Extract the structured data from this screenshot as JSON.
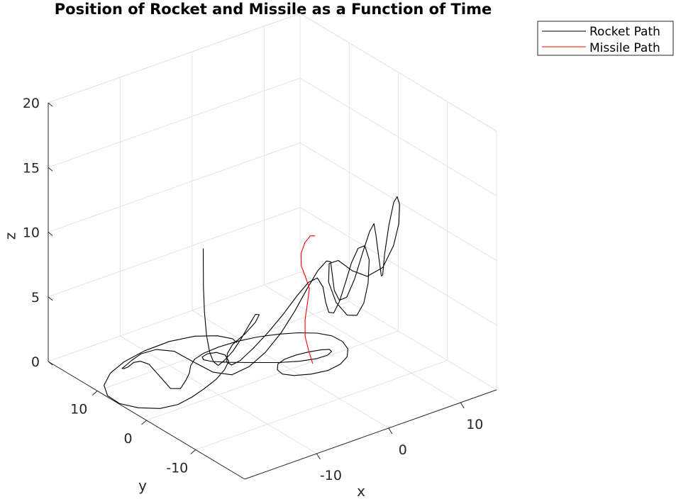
{
  "chart_data": {
    "type": "line3d",
    "title": "Position of Rocket and Missile as a Function of Time",
    "xlabel": "x",
    "ylabel": "y",
    "zlabel": "z",
    "xlim": [
      -20,
      15
    ],
    "ylim": [
      -20,
      20
    ],
    "zlim": [
      0,
      20
    ],
    "xticks": [
      -10,
      0,
      10
    ],
    "yticks": [
      -10,
      0,
      10
    ],
    "zticks": [
      0,
      5,
      10,
      15,
      20
    ],
    "grid": true,
    "legend_position": "top-right",
    "series": [
      {
        "name": "Rocket Path",
        "color": "#000000",
        "points": [
          [
            -14.5,
            -3.5,
            13.0
          ],
          [
            -14.4,
            -3.4,
            10.0
          ],
          [
            -14.2,
            -3.3,
            8.0
          ],
          [
            -13.7,
            -3.0,
            6.0
          ],
          [
            -13.0,
            -2.6,
            4.5
          ],
          [
            -12.2,
            -2.2,
            3.5
          ],
          [
            -11.4,
            -2.0,
            3.0
          ],
          [
            -10.6,
            -2.0,
            3.2
          ],
          [
            -9.8,
            -2.6,
            3.9
          ],
          [
            -9.2,
            -3.5,
            5.0
          ],
          [
            -8.8,
            -4.5,
            6.2
          ],
          [
            -8.6,
            -5.5,
            7.2
          ],
          [
            -8.9,
            -6.7,
            7.5
          ],
          [
            -10.0,
            -7.5,
            7.3
          ],
          [
            -11.2,
            -7.2,
            6.6
          ],
          [
            -12.0,
            -5.8,
            5.6
          ],
          [
            -11.7,
            -4.3,
            4.5
          ],
          [
            -10.9,
            -3.0,
            3.4
          ],
          [
            -9.6,
            -2.1,
            2.7
          ],
          [
            -8.0,
            -1.5,
            2.6
          ],
          [
            -6.3,
            -1.6,
            3.2
          ],
          [
            -4.8,
            -2.4,
            4.3
          ],
          [
            -3.5,
            -3.7,
            5.8
          ],
          [
            -2.5,
            -5.0,
            7.3
          ],
          [
            -1.8,
            -6.3,
            8.5
          ],
          [
            -1.3,
            -7.4,
            9.0
          ],
          [
            -1.2,
            -8.4,
            8.5
          ],
          [
            -1.1,
            -8.8,
            7.4
          ],
          [
            -0.6,
            -8.7,
            6.5
          ],
          [
            0.5,
            -8.1,
            6.1
          ],
          [
            1.9,
            -7.2,
            6.5
          ],
          [
            3.4,
            -6.2,
            7.4
          ],
          [
            4.8,
            -5.4,
            8.5
          ],
          [
            6.0,
            -5.0,
            9.3
          ],
          [
            6.8,
            -5.2,
            9.4
          ],
          [
            7.0,
            -5.8,
            8.4
          ],
          [
            6.5,
            -6.3,
            6.8
          ],
          [
            5.7,
            -6.6,
            5.5
          ],
          [
            4.8,
            -6.5,
            4.7
          ],
          [
            3.8,
            -6.0,
            4.8
          ],
          [
            2.8,
            -5.2,
            5.8
          ],
          [
            2.3,
            -4.4,
            7.3
          ],
          [
            2.8,
            -3.8,
            8.5
          ],
          [
            4.2,
            -3.6,
            8.4
          ],
          [
            6.0,
            -3.8,
            7.3
          ],
          [
            7.8,
            -4.2,
            6.6
          ],
          [
            9.7,
            -4.6,
            7.0
          ],
          [
            11.2,
            -4.6,
            8.4
          ],
          [
            12.2,
            -4.2,
            9.8
          ],
          [
            12.8,
            -3.5,
            11.0
          ],
          [
            13.0,
            -2.7,
            11.4
          ],
          [
            13.0,
            -2.0,
            10.8
          ],
          [
            12.6,
            -1.6,
            9.0
          ],
          [
            12.0,
            -1.6,
            6.9
          ],
          [
            11.4,
            -2.1,
            5.5
          ],
          [
            10.6,
            -3.0,
            5.8
          ],
          [
            9.9,
            -3.5,
            7.5
          ],
          [
            9.5,
            -3.5,
            9.3
          ],
          [
            9.3,
            -3.4,
            10.2
          ],
          [
            8.9,
            -3.1,
            9.6
          ],
          [
            8.2,
            -2.7,
            8.0
          ],
          [
            7.2,
            -2.5,
            6.1
          ],
          [
            6.2,
            -2.4,
            4.9
          ],
          [
            5.1,
            -2.5,
            4.9
          ],
          [
            4.2,
            -2.8,
            5.9
          ],
          [
            3.5,
            -3.4,
            7.4
          ],
          [
            2.6,
            -4.4,
            8.8
          ],
          [
            1.4,
            -5.3,
            9.3
          ],
          [
            0.0,
            -5.6,
            8.9
          ],
          [
            -1.5,
            -5.6,
            7.8
          ],
          [
            -3.1,
            -5.5,
            6.4
          ],
          [
            -4.9,
            -5.3,
            5.0
          ],
          [
            -6.9,
            -5.0,
            3.8
          ],
          [
            -8.9,
            -4.6,
            3.0
          ],
          [
            -11.0,
            -4.2,
            2.7
          ],
          [
            -13.2,
            -3.6,
            3.2
          ],
          [
            -15.5,
            -2.8,
            4.3
          ],
          [
            -17.5,
            -2.0,
            5.3
          ],
          [
            -19.2,
            -0.8,
            5.5
          ],
          [
            -20.2,
            0.8,
            5.0
          ],
          [
            -20.3,
            2.6,
            4.1
          ],
          [
            -19.9,
            4.6,
            3.1
          ],
          [
            -19.1,
            6.3,
            2.4
          ],
          [
            -18.2,
            7.2,
            2.0
          ],
          [
            -17.5,
            7.3,
            2.0
          ],
          [
            -17.2,
            6.7,
            2.4
          ],
          [
            -17.0,
            5.6,
            2.7
          ],
          [
            -16.5,
            4.6,
            2.6
          ],
          [
            -15.6,
            3.8,
            1.7
          ],
          [
            -14.2,
            3.6,
            0.5
          ],
          [
            -12.4,
            4.2,
            0.0
          ],
          [
            -10.8,
            5.5,
            0.0
          ],
          [
            -9.4,
            6.8,
            0.0
          ],
          [
            -8.2,
            8.3,
            0.0
          ],
          [
            -6.9,
            9.4,
            0.0
          ],
          [
            -5.2,
            10.0,
            0.0
          ],
          [
            -3.0,
            10.2,
            0.0
          ],
          [
            -0.6,
            10.0,
            0.0
          ],
          [
            1.8,
            9.4,
            0.0
          ],
          [
            4.1,
            8.4,
            0.0
          ],
          [
            6.0,
            7.2,
            0.0
          ],
          [
            7.6,
            5.7,
            0.0
          ],
          [
            8.5,
            4.0,
            0.0
          ],
          [
            8.6,
            2.0,
            0.0
          ],
          [
            8.0,
            0.0,
            0.0
          ],
          [
            6.8,
            -1.6,
            0.0
          ],
          [
            5.1,
            -2.7,
            0.0
          ],
          [
            3.1,
            -3.1,
            0.0
          ],
          [
            1.1,
            -2.6,
            0.0
          ],
          [
            -0.6,
            -1.6,
            0.0
          ],
          [
            -1.4,
            -0.4,
            0.0
          ],
          [
            -1.2,
            0.9,
            0.0
          ],
          [
            -0.3,
            2.1,
            0.0
          ],
          [
            1.0,
            2.6,
            0.0
          ],
          [
            2.6,
            2.6,
            0.0
          ],
          [
            4.2,
            2.3,
            0.0
          ],
          [
            5.6,
            1.8,
            0.0
          ],
          [
            6.3,
            1.3,
            0.0
          ],
          [
            6.2,
            0.7,
            0.0
          ],
          [
            5.3,
            0.2,
            0.0
          ],
          [
            3.8,
            0.3,
            0.0
          ],
          [
            2.0,
            1.0,
            0.0
          ],
          [
            0.0,
            2.3,
            0.0
          ],
          [
            -2.2,
            4.2,
            0.0
          ],
          [
            -4.3,
            6.1,
            0.0
          ],
          [
            -5.7,
            7.6,
            0.0
          ],
          [
            -6.2,
            8.6,
            0.0
          ],
          [
            -5.9,
            9.3,
            0.0
          ],
          [
            -5.0,
            9.6,
            0.0
          ],
          [
            -4.0,
            9.2,
            0.0
          ],
          [
            -3.6,
            8.0,
            0.0
          ],
          [
            -4.2,
            6.4,
            0.0
          ],
          [
            -5.8,
            4.9,
            0.0
          ],
          [
            -7.9,
            3.5,
            0.0
          ],
          [
            -10.3,
            2.4,
            0.0
          ],
          [
            -12.7,
            1.5,
            0.0
          ],
          [
            -15.0,
            1.0,
            0.0
          ],
          [
            -17.1,
            1.5,
            0.0
          ],
          [
            -18.9,
            3.3,
            0.0
          ],
          [
            -19.9,
            5.6,
            0.0
          ],
          [
            -19.8,
            8.2,
            0.0
          ],
          [
            -18.6,
            10.7,
            0.0
          ],
          [
            -16.3,
            12.8,
            0.0
          ],
          [
            -13.4,
            14.2,
            0.0
          ],
          [
            -10.0,
            15.0,
            0.0
          ],
          [
            -6.5,
            15.1,
            0.0
          ],
          [
            -3.5,
            14.3,
            0.0
          ],
          [
            -1.5,
            12.7,
            0.0
          ],
          [
            -0.6,
            10.9,
            0.0
          ],
          [
            -0.8,
            9.7,
            0.0
          ]
        ]
      },
      {
        "name": "Missile Path",
        "color": "#ff0000",
        "points": [
          [
            -1.0,
            -6.0,
            2.0
          ],
          [
            -1.8,
            -6.4,
            3.2
          ],
          [
            -2.6,
            -6.8,
            4.6
          ],
          [
            -2.8,
            -7.1,
            6.0
          ],
          [
            -2.4,
            -7.0,
            7.2
          ],
          [
            -2.0,
            -6.8,
            8.2
          ],
          [
            -2.6,
            -6.9,
            9.2
          ],
          [
            -3.4,
            -7.2,
            10.3
          ],
          [
            -3.5,
            -7.3,
            11.3
          ],
          [
            -2.9,
            -7.2,
            12.0
          ],
          [
            -2.0,
            -7.0,
            12.3
          ],
          [
            -1.2,
            -6.8,
            12.1
          ]
        ]
      }
    ]
  }
}
